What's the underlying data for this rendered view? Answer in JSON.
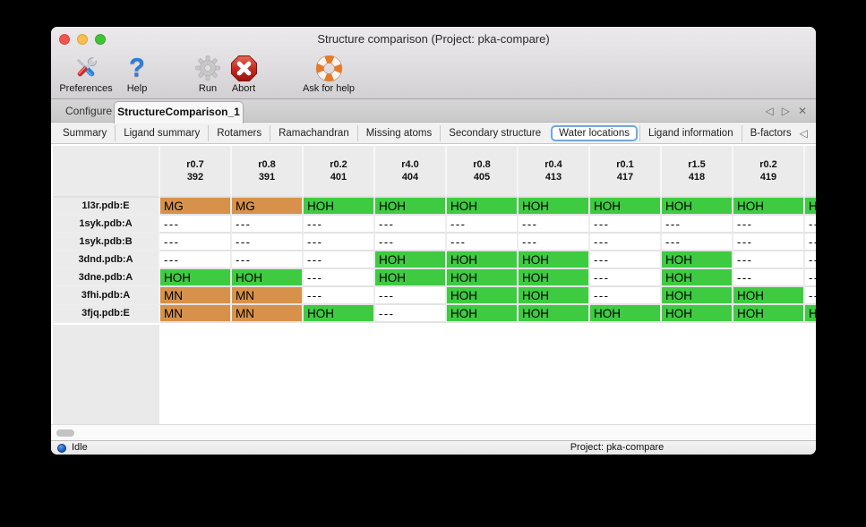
{
  "window": {
    "title": "Structure comparison (Project: pka-compare)"
  },
  "toolbar": {
    "items": [
      {
        "id": "preferences",
        "label": "Preferences"
      },
      {
        "id": "help",
        "label": "Help"
      },
      {
        "id": "run",
        "label": "Run"
      },
      {
        "id": "abort",
        "label": "Abort"
      },
      {
        "id": "ask-for-help",
        "label": "Ask for help"
      }
    ]
  },
  "primary_tabs": {
    "tabs": [
      {
        "label": "Configure",
        "selected": false
      },
      {
        "label": "StructureComparison_1",
        "selected": true
      }
    ],
    "controls": {
      "prev": "◁",
      "next": "▷",
      "close": "✕"
    }
  },
  "secondary_tabs": {
    "tabs": [
      "Summary",
      "Ligand summary",
      "Rotamers",
      "Ramachandran",
      "Missing atoms",
      "Secondary structure",
      "Water locations",
      "Ligand information",
      "B-factors"
    ],
    "selected": "Water locations",
    "controls": {
      "prev": "◁",
      "next": "▷"
    }
  },
  "table": {
    "columns": [
      {
        "line1": "r0.7",
        "line2": "392"
      },
      {
        "line1": "r0.8",
        "line2": "391"
      },
      {
        "line1": "r0.2",
        "line2": "401"
      },
      {
        "line1": "r4.0",
        "line2": "404"
      },
      {
        "line1": "r0.8",
        "line2": "405"
      },
      {
        "line1": "r0.4",
        "line2": "413"
      },
      {
        "line1": "r0.1",
        "line2": "417"
      },
      {
        "line1": "r1.5",
        "line2": "418"
      },
      {
        "line1": "r0.2",
        "line2": "419"
      },
      {
        "line1": "",
        "line2": ""
      }
    ],
    "rows": [
      {
        "label": "1l3r.pdb:E",
        "cells": [
          "MG",
          "MG",
          "HOH",
          "HOH",
          "HOH",
          "HOH",
          "HOH",
          "HOH",
          "HOH",
          "HOH"
        ]
      },
      {
        "label": "1syk.pdb:A",
        "cells": [
          "---",
          "---",
          "---",
          "---",
          "---",
          "---",
          "---",
          "---",
          "---",
          "---"
        ]
      },
      {
        "label": "1syk.pdb:B",
        "cells": [
          "---",
          "---",
          "---",
          "---",
          "---",
          "---",
          "---",
          "---",
          "---",
          "---"
        ]
      },
      {
        "label": "3dnd.pdb:A",
        "cells": [
          "---",
          "---",
          "---",
          "HOH",
          "HOH",
          "HOH",
          "---",
          "HOH",
          "---",
          "---"
        ]
      },
      {
        "label": "3dne.pdb:A",
        "cells": [
          "HOH",
          "HOH",
          "---",
          "HOH",
          "HOH",
          "HOH",
          "---",
          "HOH",
          "---",
          "---"
        ]
      },
      {
        "label": "3fhi.pdb:A",
        "cells": [
          "MN",
          "MN",
          "---",
          "---",
          "HOH",
          "HOH",
          "---",
          "HOH",
          "HOH",
          "---"
        ]
      },
      {
        "label": "3fjq.pdb:E",
        "cells": [
          "MN",
          "MN",
          "HOH",
          "---",
          "HOH",
          "HOH",
          "HOH",
          "HOH",
          "HOH",
          "HOH"
        ]
      }
    ],
    "cell_colors": {
      "HOH": "#3ecb41",
      "MG": "#d8914a",
      "MN": "#d8914a",
      "---": "#ffffff"
    }
  },
  "statusbar": {
    "status": "Idle",
    "project": "Project: pka-compare"
  },
  "colors": {
    "water": "#3ecb41",
    "metal": "#d8914a",
    "selected_tab_outline": "#74a7dd",
    "status_dot": "#1d64c8"
  }
}
